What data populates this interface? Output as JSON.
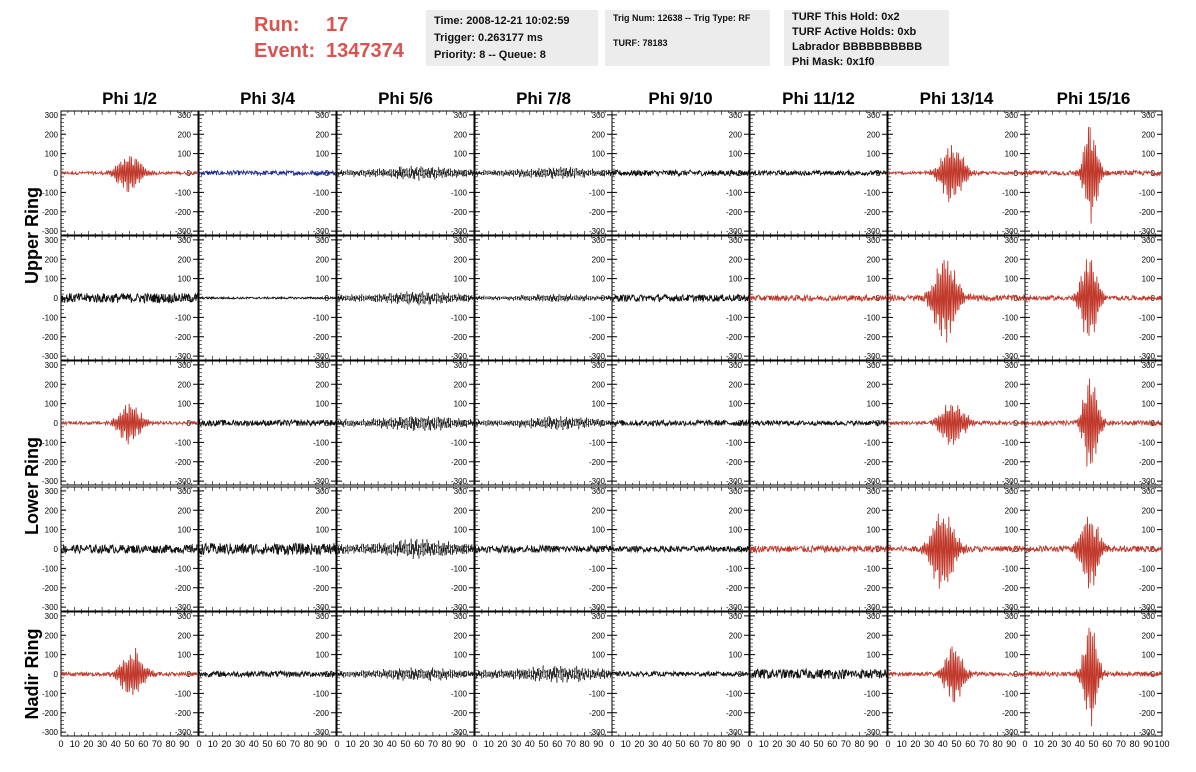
{
  "header": {
    "run_label": "Run:",
    "run_value": "17",
    "event_label": "Event:",
    "event_value": "1347374",
    "time_line": "Time: 2008-12-21 10:02:59",
    "trigger_line": "Trigger: 0.263177 ms",
    "priority_line": "Priority: 8 -- Queue: 8",
    "trig_line": "Trig Num: 12638 -- Trig Type: RF",
    "turf_line": "TURF: 78183",
    "turf_hold_line": "TURF This Hold: 0x2",
    "turf_active_line": "TURF Active Holds: 0xb",
    "labrador_line": "Labrador BBBBBBBBBB",
    "phi_mask_line": "Phi Mask: 0x1f0"
  },
  "chart_data": {
    "type": "line",
    "columns": [
      "Phi 1/2",
      "Phi 3/4",
      "Phi 5/6",
      "Phi 7/8",
      "Phi 9/10",
      "Phi 11/12",
      "Phi 13/14",
      "Phi 15/16"
    ],
    "ring_labels": [
      {
        "name": "Upper Ring",
        "rows": [
          0,
          1
        ]
      },
      {
        "name": "Lower Ring",
        "rows": [
          2,
          3
        ]
      },
      {
        "name": "Nadir Ring",
        "rows": [
          4
        ]
      }
    ],
    "ylim": [
      -320,
      320
    ],
    "ytick_values": [
      -300,
      -200,
      -100,
      0,
      100,
      200,
      300
    ],
    "xlim": [
      0,
      100
    ],
    "xtick_values": [
      0,
      10,
      20,
      30,
      40,
      50,
      60,
      70,
      80,
      90,
      100
    ],
    "colors": {
      "triggered": "#c0392b",
      "normal": "#111111",
      "blue": "#1f2b8f"
    },
    "panels": [
      [
        {
          "color": "triggered",
          "style": "burst",
          "center": 50,
          "width": 10,
          "amp": 110,
          "noise": 8
        },
        {
          "color": "blue",
          "style": "noise",
          "amp": 12
        },
        {
          "color": "normal",
          "style": "dashed",
          "amp": 40
        },
        {
          "color": "normal",
          "style": "dashed",
          "amp": 35
        },
        {
          "color": "normal",
          "style": "noise",
          "amp": 15
        },
        {
          "color": "normal",
          "style": "noise",
          "amp": 12
        },
        {
          "color": "triggered",
          "style": "burst",
          "center": 47,
          "width": 10,
          "amp": 170,
          "noise": 8
        },
        {
          "color": "triggered",
          "style": "burst",
          "center": 48,
          "width": 6,
          "amp": 290,
          "noise": 12
        }
      ],
      [
        {
          "color": "normal",
          "style": "noise",
          "amp": 25
        },
        {
          "color": "normal",
          "style": "noise",
          "amp": 5
        },
        {
          "color": "normal",
          "style": "dashed",
          "amp": 40
        },
        {
          "color": "normal",
          "style": "dashed",
          "amp": 25
        },
        {
          "color": "normal",
          "style": "noise",
          "amp": 18
        },
        {
          "color": "triggered",
          "style": "noise",
          "amp": 15
        },
        {
          "color": "triggered",
          "style": "burst",
          "center": 42,
          "width": 10,
          "amp": 240,
          "noise": 15
        },
        {
          "color": "triggered",
          "style": "burst",
          "center": 47,
          "width": 7,
          "amp": 260,
          "noise": 12
        }
      ],
      [
        {
          "color": "triggered",
          "style": "burst",
          "center": 50,
          "width": 10,
          "amp": 110,
          "noise": 8
        },
        {
          "color": "normal",
          "style": "noise",
          "amp": 15
        },
        {
          "color": "normal",
          "style": "dashed",
          "amp": 45
        },
        {
          "color": "normal",
          "style": "dashed",
          "amp": 40
        },
        {
          "color": "normal",
          "style": "noise",
          "amp": 15
        },
        {
          "color": "normal",
          "style": "noise",
          "amp": 12
        },
        {
          "color": "triggered",
          "style": "burst",
          "center": 47,
          "width": 10,
          "amp": 130,
          "noise": 10
        },
        {
          "color": "triggered",
          "style": "burst",
          "center": 48,
          "width": 6,
          "amp": 300,
          "noise": 12
        }
      ],
      [
        {
          "color": "normal",
          "style": "noise",
          "amp": 22
        },
        {
          "color": "normal",
          "style": "noise",
          "amp": 30
        },
        {
          "color": "normal",
          "style": "dashed",
          "amp": 55
        },
        {
          "color": "normal",
          "style": "noise",
          "amp": 18
        },
        {
          "color": "normal",
          "style": "noise",
          "amp": 15
        },
        {
          "color": "triggered",
          "style": "noise",
          "amp": 18
        },
        {
          "color": "triggered",
          "style": "burst",
          "center": 40,
          "width": 10,
          "amp": 230,
          "noise": 15
        },
        {
          "color": "triggered",
          "style": "burst",
          "center": 47,
          "width": 8,
          "amp": 230,
          "noise": 15
        }
      ],
      [
        {
          "color": "triggered",
          "style": "burst",
          "center": 52,
          "width": 10,
          "amp": 140,
          "noise": 10
        },
        {
          "color": "normal",
          "style": "noise",
          "amp": 15
        },
        {
          "color": "normal",
          "style": "dashed",
          "amp": 40
        },
        {
          "color": "normal",
          "style": "dashed",
          "amp": 50
        },
        {
          "color": "normal",
          "style": "noise",
          "amp": 12
        },
        {
          "color": "normal",
          "style": "noise",
          "amp": 25
        },
        {
          "color": "triggered",
          "style": "burst",
          "center": 48,
          "width": 8,
          "amp": 160,
          "noise": 10
        },
        {
          "color": "triggered",
          "style": "burst",
          "center": 48,
          "width": 6,
          "amp": 300,
          "noise": 12
        }
      ]
    ]
  }
}
